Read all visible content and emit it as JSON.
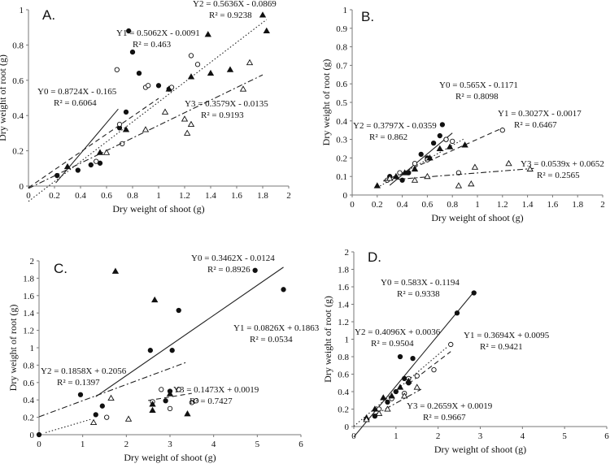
{
  "chart_data": [
    {
      "type": "scatter",
      "panel_label": "A.",
      "xlabel": "Dry weight of shoot (g)",
      "ylabel": "Dry weight of root (g)",
      "xlim": [
        0,
        2
      ],
      "ylim": [
        0,
        1
      ],
      "xticks": [
        "0",
        "0.2",
        "0.4",
        "0.6",
        "0.8",
        "1",
        "1.2",
        "1.4",
        "1.6",
        "1.8",
        "2"
      ],
      "yticks": [
        "0",
        "0.2",
        "0.4",
        "0.6",
        "0.8",
        "1"
      ],
      "series": [
        {
          "name": "Y0",
          "marker": "filled-circle",
          "line": "solid",
          "slope": 0.8724,
          "intercept": -0.165,
          "equation": "Y0 = 0.8724X - 0.165",
          "r2": "R² = 0.6064",
          "points": [
            [
              0.22,
              0.06
            ],
            [
              0.38,
              0.09
            ],
            [
              0.48,
              0.12
            ],
            [
              0.55,
              0.13
            ],
            [
              0.7,
              0.33
            ],
            [
              0.75,
              0.42
            ],
            [
              0.77,
              0.88
            ],
            [
              0.8,
              0.76
            ],
            [
              0.85,
              0.64
            ],
            [
              1.0,
              0.57
            ],
            [
              1.08,
              0.55
            ]
          ]
        },
        {
          "name": "Y1",
          "marker": "open-circle",
          "line": "dashed",
          "slope": 0.5062,
          "intercept": -0.0091,
          "equation": "Y1 = 0.5062X - 0.0091",
          "r2": "R² = 0.463",
          "points": [
            [
              0.52,
              0.14
            ],
            [
              0.72,
              0.24
            ],
            [
              0.68,
              0.66
            ],
            [
              0.9,
              0.56
            ],
            [
              0.92,
              0.57
            ],
            [
              1.1,
              0.56
            ],
            [
              1.25,
              0.74
            ],
            [
              1.3,
              0.69
            ],
            [
              0.7,
              0.35
            ]
          ]
        },
        {
          "name": "Y2",
          "marker": "filled-triangle",
          "line": "dotted",
          "slope": 0.5636,
          "intercept": -0.0869,
          "equation": "Y2 = 0.5636X - 0.0869",
          "r2": "R² = 0.9238",
          "points": [
            [
              0.3,
              0.11
            ],
            [
              0.55,
              0.19
            ],
            [
              0.75,
              0.32
            ],
            [
              1.08,
              0.55
            ],
            [
              1.25,
              0.62
            ],
            [
              1.38,
              0.86
            ],
            [
              1.4,
              0.64
            ],
            [
              1.55,
              0.66
            ],
            [
              1.8,
              0.97
            ],
            [
              1.83,
              0.88
            ]
          ]
        },
        {
          "name": "Y3",
          "marker": "open-triangle",
          "line": "dash-dot",
          "slope": 0.3579,
          "intercept": -0.0135,
          "equation": "Y3 = 0.3579X - 0.0135",
          "r2": "R² = 0.9193",
          "points": [
            [
              0.6,
              0.19
            ],
            [
              0.9,
              0.32
            ],
            [
              1.05,
              0.42
            ],
            [
              1.2,
              0.38
            ],
            [
              1.22,
              0.3
            ],
            [
              1.25,
              0.35
            ],
            [
              1.65,
              0.55
            ],
            [
              1.7,
              0.7
            ]
          ]
        }
      ]
    },
    {
      "type": "scatter",
      "panel_label": "B.",
      "xlabel": "Dry weight of shoot (g)",
      "ylabel": "Dry weight of root (g)",
      "xlim": [
        0,
        2
      ],
      "ylim": [
        0,
        1
      ],
      "xticks": [
        "0",
        "0.2",
        "0.4",
        "0.6",
        "0.8",
        "1",
        "1.2",
        "1.4",
        "1.6",
        "1.8",
        "2"
      ],
      "yticks": [
        "0",
        "0.1",
        "0.2",
        "0.3",
        "0.4",
        "0.5",
        "0.6",
        "0.7",
        "0.8",
        "0.9",
        "1"
      ],
      "series": [
        {
          "name": "Y0",
          "marker": "filled-circle",
          "line": "solid",
          "slope": 0.565,
          "intercept": -0.1171,
          "equation": "Y0 = 0.565X - 0.1171",
          "r2": "R² = 0.8098",
          "points": [
            [
              0.3,
              0.1
            ],
            [
              0.4,
              0.08
            ],
            [
              0.45,
              0.12
            ],
            [
              0.55,
              0.22
            ],
            [
              0.6,
              0.2
            ],
            [
              0.65,
              0.28
            ],
            [
              0.7,
              0.32
            ],
            [
              0.72,
              0.38
            ],
            [
              0.75,
              0.3
            ]
          ]
        },
        {
          "name": "Y1",
          "marker": "open-circle",
          "line": "dashed",
          "slope": 0.3027,
          "intercept": -0.0017,
          "equation": "Y1 = 0.3027X - 0.0017",
          "r2": "R² = 0.6467",
          "points": [
            [
              0.28,
              0.08
            ],
            [
              0.38,
              0.12
            ],
            [
              0.5,
              0.17
            ],
            [
              0.6,
              0.19
            ],
            [
              0.75,
              0.3
            ],
            [
              0.8,
              0.29
            ],
            [
              0.85,
              0.12
            ],
            [
              1.2,
              0.35
            ]
          ]
        },
        {
          "name": "Y2",
          "marker": "filled-triangle",
          "line": "dotted",
          "slope": 0.3797,
          "intercept": -0.0359,
          "equation": "Y2 = 0.3797X - 0.0359",
          "r2": "R² = 0.862",
          "points": [
            [
              0.2,
              0.05
            ],
            [
              0.35,
              0.1
            ],
            [
              0.42,
              0.12
            ],
            [
              0.5,
              0.14
            ],
            [
              0.62,
              0.2
            ],
            [
              0.7,
              0.25
            ],
            [
              0.9,
              0.27
            ],
            [
              0.78,
              0.26
            ]
          ]
        },
        {
          "name": "Y3",
          "marker": "open-triangle",
          "line": "dash-dot",
          "slope": 0.0539,
          "intercept": 0.0652,
          "equation": "Y3 = 0.0539x + 0.0652",
          "r2": "R² = 0.2565",
          "points": [
            [
              0.3,
              0.09
            ],
            [
              0.5,
              0.08
            ],
            [
              0.6,
              0.1
            ],
            [
              0.85,
              0.05
            ],
            [
              0.95,
              0.06
            ],
            [
              0.98,
              0.15
            ],
            [
              1.25,
              0.17
            ],
            [
              1.42,
              0.14
            ]
          ]
        }
      ]
    },
    {
      "type": "scatter",
      "panel_label": "C.",
      "xlabel": "Dry weight of shoot (g)",
      "ylabel": "Dry weight of root (g)",
      "xlim": [
        0,
        6
      ],
      "ylim": [
        0,
        2
      ],
      "xticks": [
        "0",
        "1",
        "2",
        "3",
        "4",
        "5",
        "6"
      ],
      "yticks": [
        "0",
        "0.2",
        "0.4",
        "0.6",
        "0.8",
        "1",
        "1.2",
        "1.4",
        "1.6",
        "1.8",
        "2"
      ],
      "series": [
        {
          "name": "Y0",
          "marker": "filled-circle",
          "line": "solid",
          "slope": 0.3462,
          "intercept": -0.0124,
          "equation": "Y0 = 0.3462X - 0.0124",
          "r2": "R² = 0.8926",
          "points": [
            [
              0.0,
              0.0
            ],
            [
              0.95,
              0.46
            ],
            [
              1.3,
              0.23
            ],
            [
              1.45,
              0.33
            ],
            [
              2.55,
              0.97
            ],
            [
              2.9,
              0.39
            ],
            [
              3.05,
              0.97
            ],
            [
              3.2,
              1.43
            ],
            [
              5.6,
              1.67
            ],
            [
              4.95,
              1.89
            ],
            [
              3.0,
              0.5
            ]
          ]
        },
        {
          "name": "Y1",
          "marker": "open-circle",
          "line": "dashed",
          "slope": 0.0826,
          "intercept": 0.1863,
          "equation": "Y1 = 0.0826X + 0.1863",
          "r2": "R² = 0.0534",
          "points": [
            [
              1.55,
              0.2
            ],
            [
              2.6,
              0.38
            ],
            [
              2.8,
              0.52
            ],
            [
              3.0,
              0.3
            ],
            [
              3.2,
              0.52
            ],
            [
              3.5,
              0.37
            ],
            [
              3.6,
              0.39
            ]
          ]
        },
        {
          "name": "Y2",
          "marker": "filled-triangle",
          "line": "dash-dot",
          "slope": 0.1858,
          "intercept": 0.2056,
          "equation": "Y2 = 0.1858X + 0.2056",
          "r2": "R² = 0.1397",
          "points": [
            [
              1.75,
              1.88
            ],
            [
              2.65,
              1.55
            ],
            [
              2.6,
              0.35
            ],
            [
              2.6,
              0.28
            ],
            [
              3.0,
              0.47
            ],
            [
              3.4,
              0.24
            ]
          ]
        },
        {
          "name": "Y3",
          "marker": "open-triangle",
          "line": "dotted",
          "slope": 0.1473,
          "intercept": 0.0019,
          "equation": "Y3 = 0.1473X + 0.0019",
          "r2": "R² = 0.7427",
          "points": [
            [
              1.25,
              0.14
            ],
            [
              1.65,
              0.42
            ],
            [
              2.05,
              0.18
            ]
          ]
        }
      ]
    },
    {
      "type": "scatter",
      "panel_label": "D.",
      "xlabel": "Dry weight of shoot (g)",
      "ylabel": "Dry weight of root (g)",
      "xlim": [
        0,
        6
      ],
      "ylim": [
        0,
        2
      ],
      "xticks": [
        "0",
        "1",
        "2",
        "3",
        "4",
        "5",
        "6"
      ],
      "yticks": [
        "0",
        "0.2",
        "0.4",
        "0.6",
        "0.8",
        "1",
        "1.2",
        "1.4",
        "1.6",
        "1.8",
        "2"
      ],
      "series": [
        {
          "name": "Y0",
          "marker": "filled-circle",
          "line": "solid",
          "slope": 0.583,
          "intercept": -0.1194,
          "equation": "Y0 = 0.583X - 0.1194",
          "r2": "R² = 0.9338",
          "points": [
            [
              0.5,
              0.12
            ],
            [
              0.8,
              0.28
            ],
            [
              1.1,
              0.8
            ],
            [
              1.2,
              0.55
            ],
            [
              1.3,
              0.5
            ],
            [
              1.4,
              0.78
            ],
            [
              2.45,
              1.3
            ],
            [
              2.85,
              1.53
            ],
            [
              1.0,
              0.4
            ]
          ]
        },
        {
          "name": "Y1",
          "marker": "open-circle",
          "line": "dashed",
          "slope": 0.3694,
          "intercept": 0.0095,
          "equation": "Y1 = 0.3694X + 0.0095",
          "r2": "R² = 0.9421",
          "points": [
            [
              0.6,
              0.2
            ],
            [
              0.9,
              0.32
            ],
            [
              1.2,
              0.38
            ],
            [
              1.5,
              0.58
            ],
            [
              1.9,
              0.65
            ],
            [
              2.3,
              0.94
            ],
            [
              1.3,
              0.55
            ]
          ]
        },
        {
          "name": "Y2",
          "marker": "filled-triangle",
          "line": "dotted",
          "slope": 0.4096,
          "intercept": 0.0036,
          "equation": "Y2 = 0.4096X + 0.0036",
          "r2": "R² = 0.9504",
          "points": [
            [
              0.3,
              0.1
            ],
            [
              0.5,
              0.2
            ],
            [
              0.7,
              0.33
            ],
            [
              0.9,
              0.35
            ],
            [
              1.1,
              0.45
            ],
            [
              1.3,
              0.52
            ]
          ]
        },
        {
          "name": "Y3",
          "marker": "open-triangle",
          "line": "dash-dot",
          "slope": 0.2659,
          "intercept": 0.0019,
          "equation": "Y3 = 0.2659X + 0.0019",
          "r2": "R² = 0.9667",
          "points": [
            [
              0.3,
              0.08
            ],
            [
              0.6,
              0.15
            ],
            [
              0.8,
              0.2
            ],
            [
              1.2,
              0.35
            ],
            [
              1.5,
              0.45
            ]
          ]
        }
      ]
    }
  ]
}
